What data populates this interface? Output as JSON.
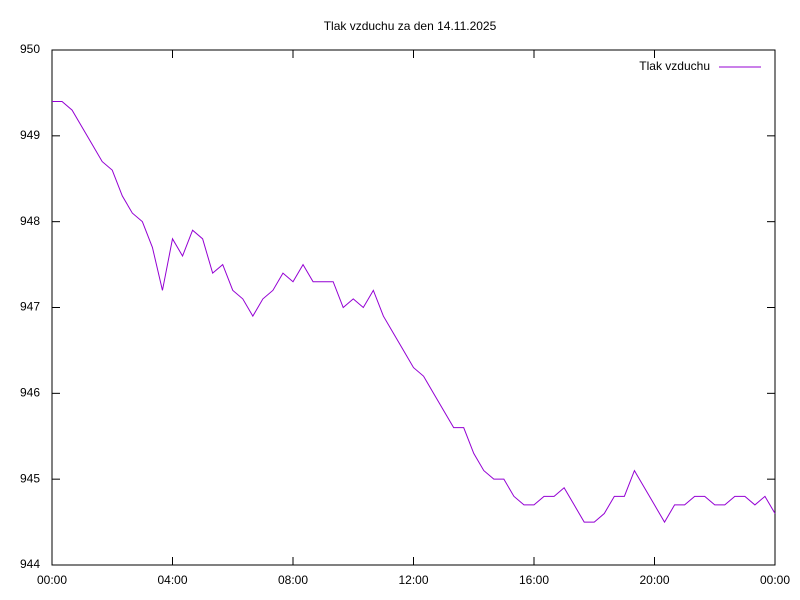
{
  "chart_data": {
    "type": "line",
    "title": "Tlak vzduchu za den 14.11.2025",
    "x": [
      0,
      20,
      40,
      60,
      80,
      100,
      120,
      140,
      160,
      180,
      200,
      220,
      240,
      260,
      280,
      300,
      320,
      340,
      360,
      380,
      400,
      420,
      440,
      460,
      480,
      500,
      520,
      540,
      560,
      580,
      600,
      620,
      640,
      660,
      680,
      700,
      720,
      740,
      760,
      780,
      800,
      820,
      840,
      860,
      880,
      900,
      920,
      940,
      960,
      980,
      1000,
      1020,
      1040,
      1060,
      1080,
      1100,
      1120,
      1140,
      1160,
      1180,
      1200,
      1220,
      1240,
      1260,
      1280,
      1300,
      1320,
      1340,
      1360,
      1380,
      1400,
      1420,
      1440
    ],
    "series": [
      {
        "name": "Tlak vzduchu",
        "color": "#9400d3",
        "values": [
          949.4,
          949.4,
          949.3,
          949.1,
          948.9,
          948.7,
          948.6,
          948.3,
          948.1,
          948.0,
          947.7,
          947.2,
          947.8,
          947.6,
          947.9,
          947.8,
          947.4,
          947.5,
          947.2,
          947.1,
          946.9,
          947.1,
          947.2,
          947.4,
          947.3,
          947.5,
          947.3,
          947.3,
          947.3,
          947.0,
          947.1,
          947.0,
          947.2,
          946.9,
          946.7,
          946.5,
          946.3,
          946.2,
          946.0,
          945.8,
          945.6,
          945.6,
          945.3,
          945.1,
          945.0,
          945.0,
          944.8,
          944.7,
          944.7,
          944.8,
          944.8,
          944.9,
          944.7,
          944.5,
          944.5,
          944.6,
          944.8,
          944.8,
          945.1,
          944.9,
          944.7,
          944.5,
          944.7,
          944.7,
          944.8,
          944.8,
          944.7,
          944.7,
          944.8,
          944.8,
          944.7,
          944.8,
          944.6
        ]
      }
    ],
    "xlim": [
      0,
      1440
    ],
    "xticks": [
      {
        "value": 0,
        "label": "00:00"
      },
      {
        "value": 240,
        "label": "04:00"
      },
      {
        "value": 480,
        "label": "08:00"
      },
      {
        "value": 720,
        "label": "12:00"
      },
      {
        "value": 960,
        "label": "16:00"
      },
      {
        "value": 1200,
        "label": "20:00"
      },
      {
        "value": 1440,
        "label": "00:00"
      }
    ],
    "ylim": [
      944,
      950
    ],
    "yticks": [
      944,
      945,
      946,
      947,
      948,
      949,
      950
    ],
    "legend": "top-right"
  }
}
